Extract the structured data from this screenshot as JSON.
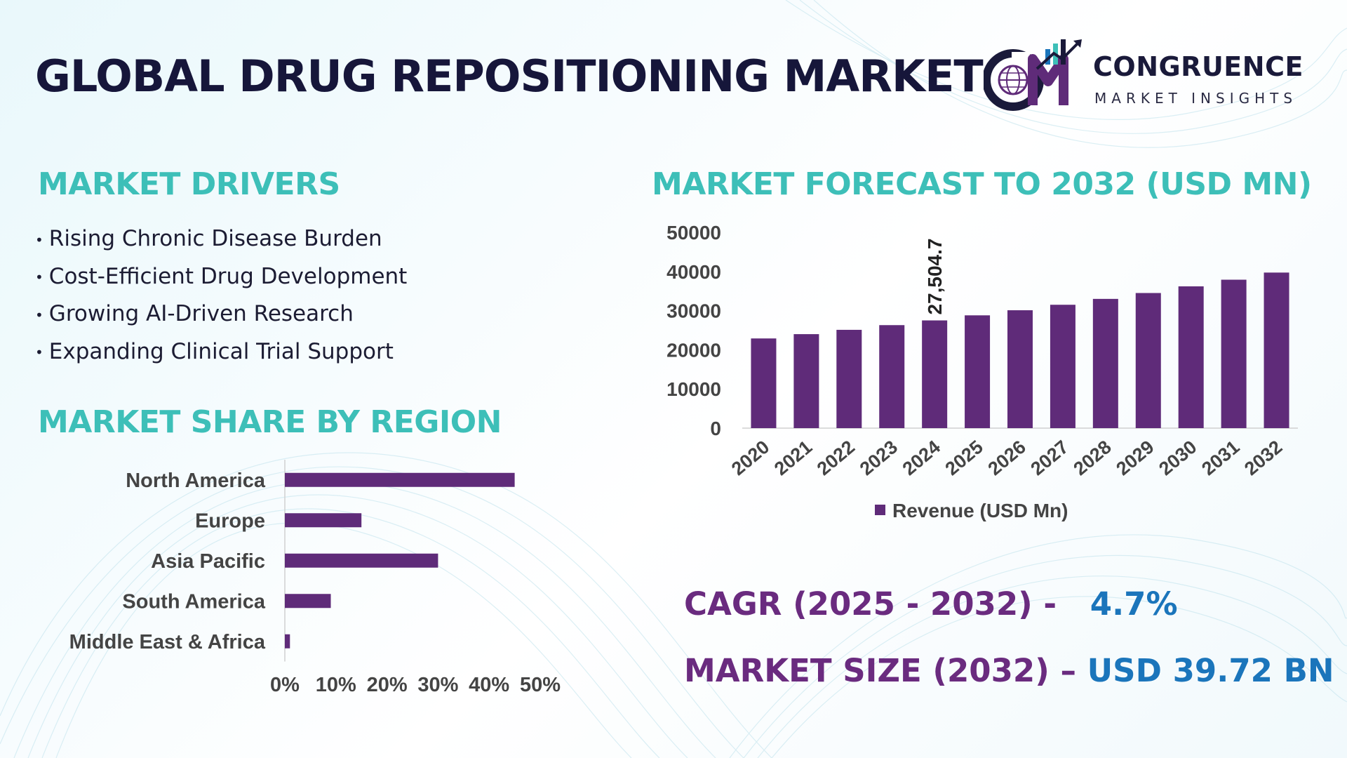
{
  "title": "GLOBAL DRUG REPOSITIONING MARKET",
  "logo": {
    "name": "CONGRUENCE",
    "tagline": "MARKET INSIGHTS",
    "icon": "cm-globe-growth-logo"
  },
  "drivers": {
    "heading": "MARKET DRIVERS",
    "items": [
      "Rising Chronic Disease Burden",
      "Cost-Efficient Drug Development",
      "Growing AI-Driven Research",
      "Expanding Clinical Trial Support"
    ]
  },
  "region": {
    "heading": "MARKET SHARE BY REGION"
  },
  "forecast": {
    "heading": "MARKET FORECAST TO 2032 (USD MN)"
  },
  "kpis": {
    "cagr_label": "CAGR (2025 - 2032) -",
    "cagr_value": "4.7%",
    "size_label": "MARKET SIZE (2032) –",
    "size_value": "USD 39.72 BN"
  },
  "colors": {
    "bar": "#5f2b79",
    "heading": "#3dbfb8",
    "kpi_label": "#6a2b7f",
    "kpi_value": "#1b75bb",
    "title": "#16163a",
    "axis_text": "#444444"
  },
  "chart_data": [
    {
      "type": "bar",
      "orientation": "vertical",
      "categories": [
        "2020",
        "2021",
        "2022",
        "2023",
        "2024",
        "2025",
        "2026",
        "2027",
        "2028",
        "2029",
        "2030",
        "2031",
        "2032"
      ],
      "series": [
        {
          "name": "Revenue (USD Mn)",
          "values": [
            22900,
            24000,
            25100,
            26300,
            27504.7,
            28800,
            30100,
            31500,
            33000,
            34500,
            36200,
            37900,
            39720
          ]
        }
      ],
      "data_labels": [
        {
          "category": "2024",
          "text": "27,504.7"
        }
      ],
      "y_ticks": [
        "0",
        "10000",
        "20000",
        "30000",
        "40000",
        "50000"
      ],
      "ylim": [
        0,
        50000
      ],
      "legend": "bottom",
      "grid": false
    },
    {
      "type": "bar",
      "orientation": "horizontal",
      "categories": [
        "North America",
        "Europe",
        "Asia Pacific",
        "South America",
        "Middle East & Africa"
      ],
      "values": [
        45,
        15,
        30,
        9,
        1
      ],
      "x_ticks": [
        "0%",
        "10%",
        "20%",
        "30%",
        "40%",
        "50%"
      ],
      "xlim": [
        0,
        50
      ],
      "grid": false
    }
  ]
}
